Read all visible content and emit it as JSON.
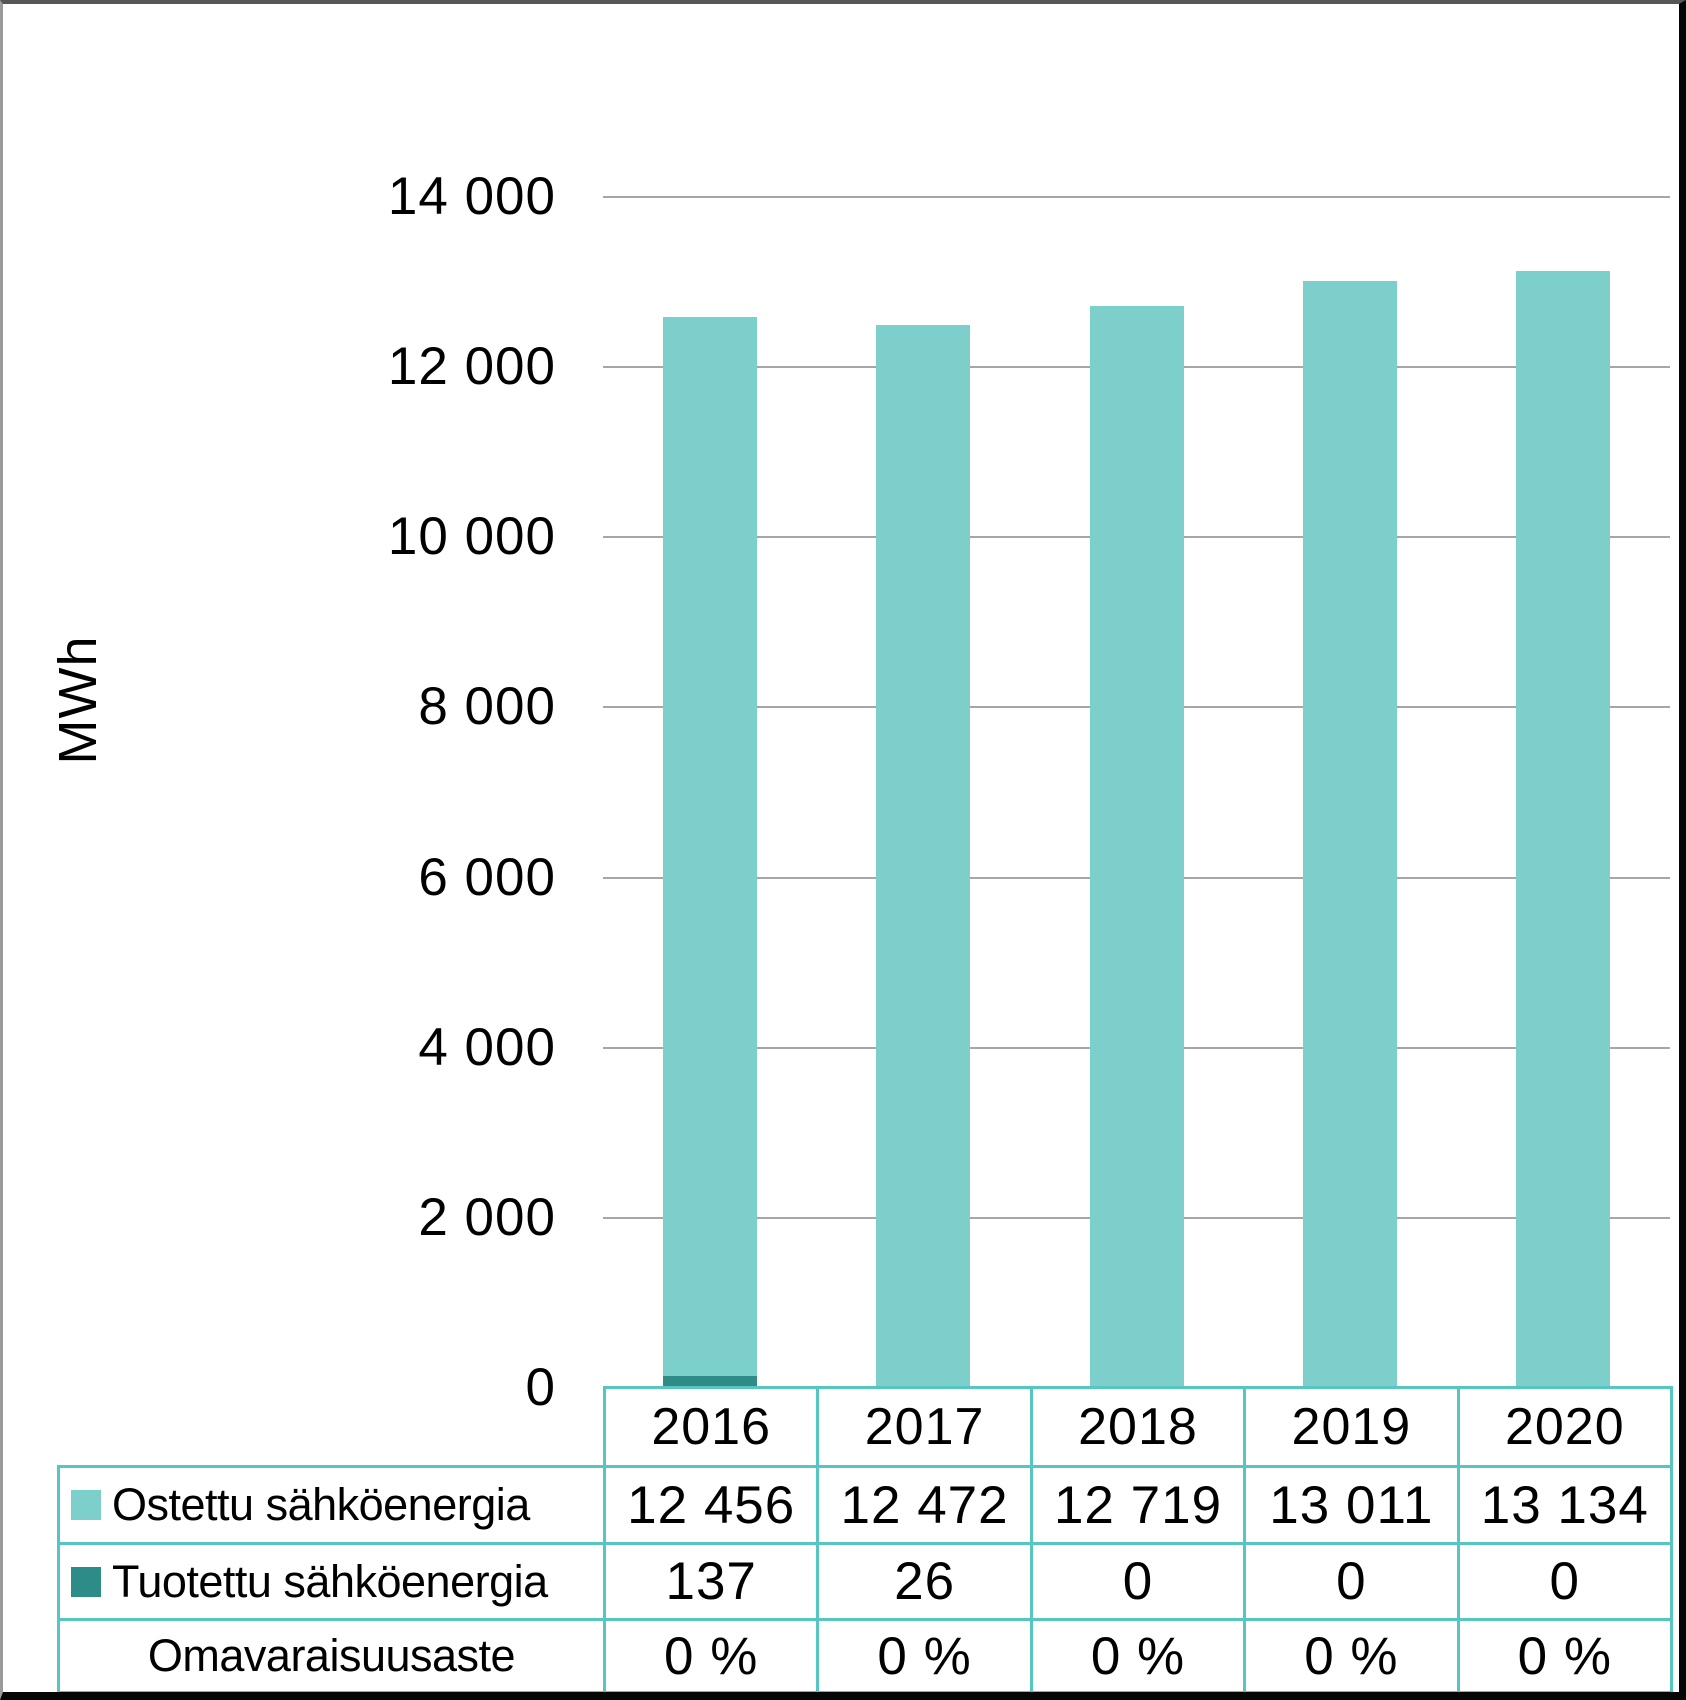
{
  "y_axis": {
    "title": "MWh",
    "ticks": [
      {
        "value": 14000,
        "label": "14 000"
      },
      {
        "value": 12000,
        "label": "12 000"
      },
      {
        "value": 10000,
        "label": "10 000"
      },
      {
        "value": 8000,
        "label": "8 000"
      },
      {
        "value": 6000,
        "label": "6 000"
      },
      {
        "value": 4000,
        "label": "4 000"
      },
      {
        "value": 2000,
        "label": "2 000"
      },
      {
        "value": 0,
        "label": "0"
      }
    ]
  },
  "chart_data": {
    "type": "bar",
    "stacked": true,
    "title": "",
    "categories": [
      "2016",
      "2017",
      "2018",
      "2019",
      "2020"
    ],
    "series": [
      {
        "name": "Ostettu sähköenergia",
        "slug": "ostettu-sahkoenergia",
        "color": "#7CCFCB",
        "values": [
          12456,
          12472,
          12719,
          13011,
          13134
        ]
      },
      {
        "name": "Tuotettu sähköenergia",
        "slug": "tuotettu-sahkoenergia",
        "color": "#2D8C88",
        "values": [
          137,
          26,
          0,
          0,
          0
        ]
      }
    ],
    "xlabel": "",
    "ylabel": "MWh",
    "ylim": [
      0,
      14000
    ],
    "ytick_step": 2000,
    "grid": true,
    "legend_position": "table swatches at left of data-table rows below chart"
  },
  "table": {
    "header_row": [
      "2016",
      "2017",
      "2018",
      "2019",
      "2020"
    ],
    "rows": [
      {
        "label": "Ostettu sähköenergia",
        "slug": "ostettu-sahkoenergia",
        "swatch_color": "#7CCFCB",
        "values": [
          "12 456",
          "12 472",
          "12 719",
          "13 011",
          "13 134"
        ]
      },
      {
        "label": "Tuotettu sähköenergia",
        "slug": "tuotettu-sahkoenergia",
        "swatch_color": "#2D8C88",
        "values": [
          "137",
          "26",
          "0",
          "0",
          "0"
        ]
      },
      {
        "label": "Omavaraisuusaste",
        "slug": "omavaraisuusaste",
        "swatch_color": null,
        "values": [
          "0 %",
          "0 %",
          "0 %",
          "0 %",
          "0 %"
        ]
      }
    ],
    "border_color": "#57C5C1"
  },
  "colors": {
    "grid_line": "#A6A6A6",
    "background": "#FFFFFF",
    "text": "#000000"
  }
}
